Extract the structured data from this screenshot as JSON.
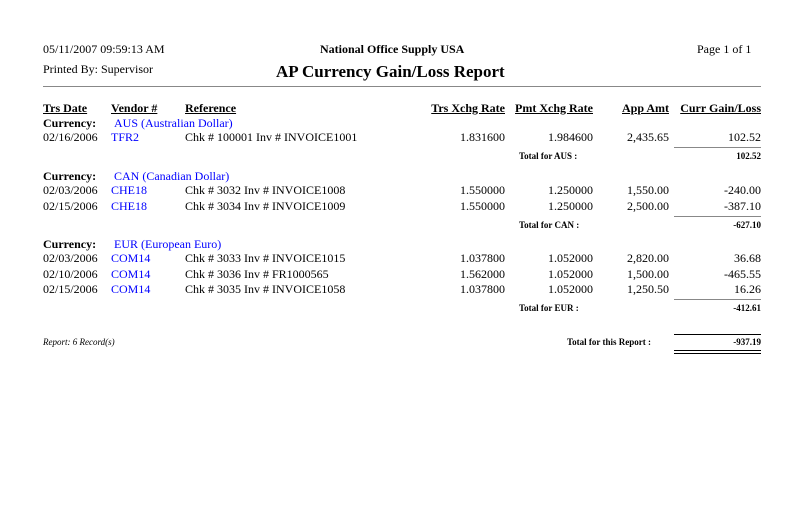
{
  "header": {
    "datetime": "05/11/2007   09:59:13 AM",
    "company": "National Office Supply USA",
    "page": "Page 1 of  1",
    "printed_by": "Printed By: Supervisor",
    "title": "AP Currency Gain/Loss Report"
  },
  "columns": [
    "Trs Date",
    "Vendor #",
    "Reference",
    "Trs Xchg Rate",
    "Pmt Xchg Rate",
    "App  Amt",
    "Curr Gain/Loss"
  ],
  "currency_label": "Currency:",
  "groups": [
    {
      "currency": "AUS (Australian Dollar)",
      "rows": [
        [
          "02/16/2006",
          "TFR2",
          "Chk # 100001 Inv # INVOICE1001",
          "1.831600",
          "1.984600",
          "2,435.65",
          "102.52"
        ]
      ],
      "total_label": "Total for AUS :",
      "total": "102.52"
    },
    {
      "currency": "CAN (Canadian Dollar)",
      "rows": [
        [
          "02/03/2006",
          "CHE18",
          "Chk # 3032 Inv # INVOICE1008",
          "1.550000",
          "1.250000",
          "1,550.00",
          "-240.00"
        ],
        [
          "02/15/2006",
          "CHE18",
          "Chk # 3034 Inv # INVOICE1009",
          "1.550000",
          "1.250000",
          "2,500.00",
          "-387.10"
        ]
      ],
      "total_label": "Total for CAN :",
      "total": "-627.10"
    },
    {
      "currency": "EUR (European Euro)",
      "rows": [
        [
          "02/03/2006",
          "COM14",
          "Chk # 3033 Inv # INVOICE1015",
          "1.037800",
          "1.052000",
          "2,820.00",
          "36.68"
        ],
        [
          "02/10/2006",
          "COM14",
          "Chk # 3036 Inv # FR1000565",
          "1.562000",
          "1.052000",
          "1,500.00",
          "-465.55"
        ],
        [
          "02/15/2006",
          "COM14",
          "Chk # 3035 Inv # INVOICE1058",
          "1.037800",
          "1.052000",
          "1,250.50",
          "16.26"
        ]
      ],
      "total_label": "Total for EUR :",
      "total": "-412.61"
    }
  ],
  "footer": {
    "records": "Report: 6 Record(s)",
    "grand_total_label": "Total for this Report :",
    "grand_total": "-937.19"
  },
  "colors": {
    "link": "#0000ff"
  }
}
